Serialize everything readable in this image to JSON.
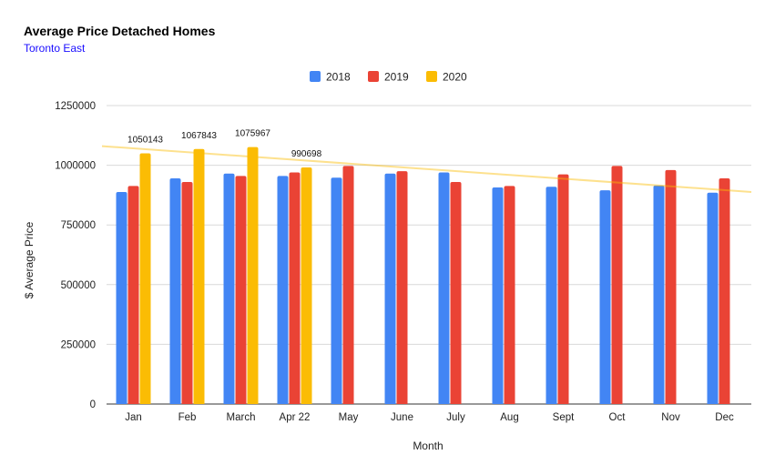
{
  "chart_data": {
    "type": "bar",
    "title": "Average Price Detached Homes",
    "subtitle": "Toronto East",
    "subtitle_color": "#1a0dff",
    "xlabel": "Month",
    "ylabel": "$ Average Price",
    "ylim": [
      0,
      1250000
    ],
    "yticks": [
      0,
      250000,
      500000,
      750000,
      1000000,
      1250000
    ],
    "grid": true,
    "legend_position": "top",
    "categories": [
      "Jan",
      "Feb",
      "March",
      "Apr 22",
      "May",
      "June",
      "July",
      "Aug",
      "Sept",
      "Oct",
      "Nov",
      "Dec"
    ],
    "series": [
      {
        "name": "2018",
        "color": "#4285f4",
        "values": [
          888000,
          945000,
          965000,
          955000,
          948000,
          965000,
          970000,
          907000,
          910000,
          895000,
          915000,
          885000
        ]
      },
      {
        "name": "2019",
        "color": "#ea4335",
        "values": [
          913000,
          930000,
          955000,
          970000,
          997000,
          975000,
          930000,
          913000,
          962000,
          997000,
          980000,
          945000
        ]
      },
      {
        "name": "2020",
        "color": "#fbbc04",
        "values": [
          1050143,
          1067843,
          1075967,
          990698,
          null,
          null,
          null,
          null,
          null,
          null,
          null,
          null
        ]
      }
    ],
    "data_labels": [
      {
        "series": "2020",
        "category": "Jan",
        "text": "1050143"
      },
      {
        "series": "2020",
        "category": "Feb",
        "text": "1067843"
      },
      {
        "series": "2020",
        "category": "March",
        "text": "1075967"
      },
      {
        "series": "2020",
        "category": "Apr 22",
        "text": "990698"
      }
    ],
    "trendline": {
      "color": "#fbbc04",
      "opacity": 0.45,
      "start_value": 1080000,
      "end_value": 888000
    }
  }
}
